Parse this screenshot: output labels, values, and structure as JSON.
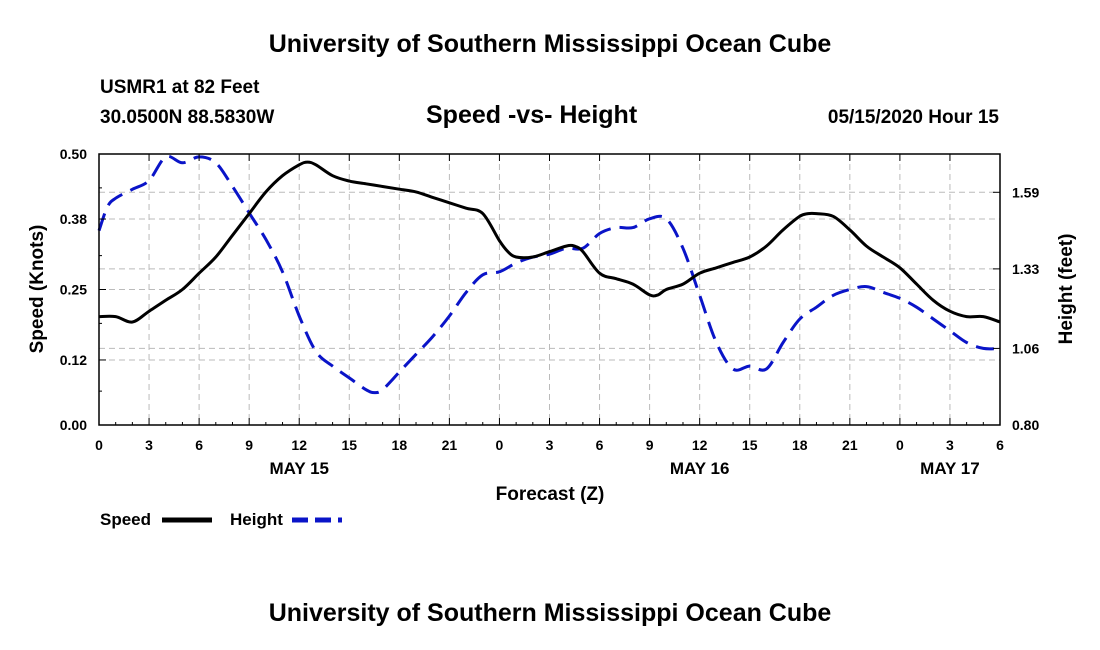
{
  "header": {
    "title": "University of Southern Mississippi Ocean Cube",
    "station": "USMR1 at 82 Feet",
    "coords": "30.0500N 88.5830W",
    "subtitle": "Speed -vs- Height",
    "datetime": "05/15/2020 Hour 15"
  },
  "footer": {
    "title": "University of Southern Mississippi Ocean Cube"
  },
  "colors": {
    "speed": "#000000",
    "height": "#0a14c8",
    "grid": "#bbbbbb"
  },
  "chart_data": {
    "type": "line",
    "title": "Speed -vs- Height",
    "xlabel": "Forecast (Z)",
    "ylabel": "Speed (Knots)",
    "y2label": "Height (feet)",
    "xlim": [
      0,
      54
    ],
    "ylim": [
      0,
      0.5
    ],
    "y2lim": [
      0.8,
      1.72
    ],
    "yticks": [
      "0.00",
      "0.12",
      "0.25",
      "0.38",
      "0.50"
    ],
    "y2ticks": [
      "0.80",
      "1.06",
      "1.33",
      "1.59"
    ],
    "xtick_labels": [
      "0",
      "3",
      "6",
      "9",
      "12",
      "15",
      "18",
      "21",
      "0",
      "3",
      "6",
      "9",
      "12",
      "15",
      "18",
      "21",
      "0",
      "3",
      "6"
    ],
    "date_labels": [
      {
        "label": "MAY 15",
        "hour": 12
      },
      {
        "label": "MAY 16",
        "hour": 36
      },
      {
        "label": "MAY 17",
        "hour": 51
      }
    ],
    "grid": true,
    "legend_position": "bottom-left",
    "series": [
      {
        "name": "Speed",
        "axis": "left",
        "style": "solid",
        "x": [
          0,
          1,
          2,
          3,
          4,
          5,
          6,
          7,
          8,
          9,
          10,
          11,
          12,
          12.5,
          13,
          14,
          15,
          16,
          17,
          18,
          19,
          20,
          21,
          22,
          23,
          24,
          24.5,
          25,
          26,
          27,
          28,
          28.5,
          29,
          30,
          31,
          32,
          33,
          33.5,
          34,
          35,
          36,
          37,
          38,
          39,
          40,
          41,
          42,
          42.5,
          43,
          44,
          45,
          46,
          47,
          48,
          49,
          50,
          51,
          52,
          53,
          54
        ],
        "values": [
          0.2,
          0.2,
          0.19,
          0.21,
          0.23,
          0.25,
          0.28,
          0.31,
          0.35,
          0.39,
          0.43,
          0.46,
          0.48,
          0.485,
          0.48,
          0.46,
          0.45,
          0.445,
          0.44,
          0.435,
          0.43,
          0.42,
          0.41,
          0.4,
          0.39,
          0.34,
          0.32,
          0.31,
          0.31,
          0.32,
          0.33,
          0.33,
          0.32,
          0.28,
          0.27,
          0.26,
          0.24,
          0.24,
          0.25,
          0.26,
          0.28,
          0.29,
          0.3,
          0.31,
          0.33,
          0.36,
          0.385,
          0.39,
          0.39,
          0.385,
          0.36,
          0.33,
          0.31,
          0.29,
          0.26,
          0.23,
          0.21,
          0.2,
          0.2,
          0.19
        ]
      },
      {
        "name": "Height",
        "axis": "right",
        "style": "dashed",
        "x": [
          0,
          0.5,
          1,
          2,
          3,
          4,
          5,
          6,
          7,
          8,
          9,
          10,
          11,
          12,
          13,
          14,
          15,
          16,
          16.5,
          17,
          18,
          19,
          20,
          21,
          22,
          23,
          24,
          25,
          26,
          27,
          28,
          29,
          30,
          31,
          32,
          33,
          34,
          35,
          36,
          37,
          38,
          39,
          40,
          41,
          42,
          43,
          44,
          45,
          46,
          47,
          48,
          49,
          50,
          51,
          52,
          53,
          54
        ],
        "values": [
          1.46,
          1.54,
          1.57,
          1.6,
          1.63,
          1.71,
          1.69,
          1.71,
          1.69,
          1.61,
          1.52,
          1.43,
          1.32,
          1.17,
          1.05,
          1.0,
          0.96,
          0.92,
          0.91,
          0.92,
          0.98,
          1.04,
          1.1,
          1.17,
          1.25,
          1.31,
          1.32,
          1.35,
          1.37,
          1.38,
          1.4,
          1.4,
          1.45,
          1.47,
          1.47,
          1.5,
          1.5,
          1.4,
          1.24,
          1.08,
          0.99,
          1.0,
          0.99,
          1.08,
          1.16,
          1.2,
          1.24,
          1.26,
          1.27,
          1.25,
          1.23,
          1.2,
          1.16,
          1.12,
          1.08,
          1.06,
          1.06
        ]
      }
    ]
  }
}
